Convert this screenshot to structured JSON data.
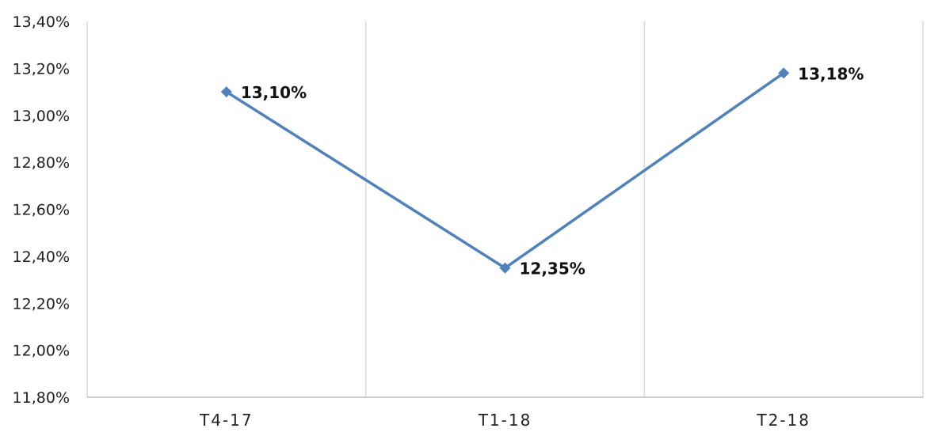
{
  "chart_data": {
    "type": "line",
    "title": "",
    "xlabel": "",
    "ylabel": "",
    "categories": [
      "T4-17",
      "T1-18",
      "T2-18"
    ],
    "values": [
      13.1,
      12.35,
      13.18
    ],
    "value_labels": [
      "13,10%",
      "12,35%",
      "13,18%"
    ],
    "ylim": [
      11.8,
      13.4
    ],
    "y_ticks": [
      13.4,
      13.2,
      13.0,
      12.8,
      12.6,
      12.4,
      12.2,
      12.0,
      11.8
    ],
    "y_tick_labels": [
      "13,40%",
      "13,20%",
      "13,00%",
      "12,80%",
      "12,60%",
      "12,40%",
      "12,20%",
      "12,00%",
      "11,80%"
    ],
    "grid": "vertical",
    "legend": "none",
    "line_color": "#4f81bd",
    "grid_color": "#d9d9d9"
  }
}
